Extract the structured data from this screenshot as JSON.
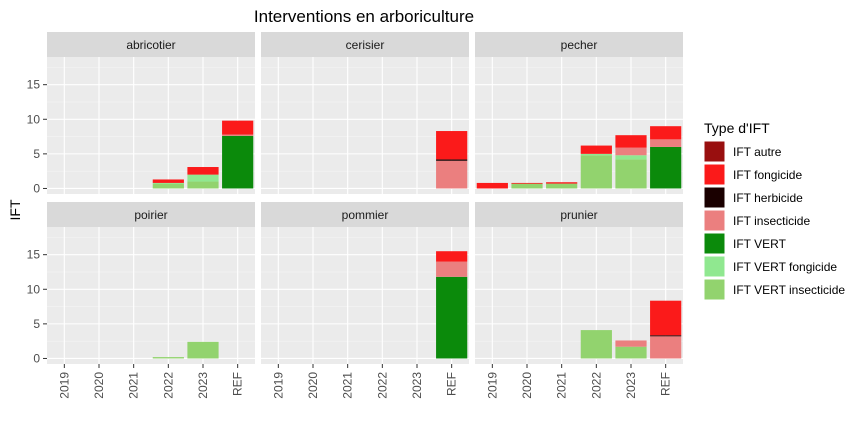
{
  "chart_data": {
    "type": "bar",
    "title": "Interventions en arboriculture",
    "xlabel": "",
    "ylabel": "IFT",
    "ylim": [
      -0.8,
      19
    ],
    "yticks": [
      0,
      5,
      10,
      15
    ],
    "grid": true,
    "legend_position": "right",
    "legend_title": "Type d'IFT",
    "categories": [
      "2019",
      "2020",
      "2021",
      "2022",
      "2023",
      "REF"
    ],
    "series": [
      {
        "name": "IFT autre",
        "color": "#990F0F"
      },
      {
        "name": "IFT fongicide",
        "color": "#FB1A1A"
      },
      {
        "name": "IFT herbicide",
        "color": "#1A0000"
      },
      {
        "name": "IFT insecticide",
        "color": "#EB7F7F"
      },
      {
        "name": "IFT VERT",
        "color": "#0B8A0B"
      },
      {
        "name": "IFT VERT fongicide",
        "color": "#90E890"
      },
      {
        "name": "IFT VERT insecticide",
        "color": "#92D36E"
      }
    ],
    "stack_order": [
      "IFT VERT insecticide",
      "IFT VERT fongicide",
      "IFT VERT",
      "IFT insecticide",
      "IFT herbicide",
      "IFT fongicide",
      "IFT autre"
    ],
    "panels": [
      {
        "name": "abricotier",
        "values": {
          "2019": {},
          "2020": {},
          "2021": {},
          "2022": {
            "IFT VERT insecticide": 0.7,
            "IFT VERT fongicide": 0.1,
            "IFT fongicide": 0.5
          },
          "2023": {
            "IFT VERT insecticide": 1.0,
            "IFT VERT fongicide": 1.0,
            "IFT fongicide": 1.1
          },
          "REF": {
            "IFT VERT": 7.6,
            "IFT insecticide": 0.2,
            "IFT fongicide": 2.0
          }
        }
      },
      {
        "name": "cerisier",
        "values": {
          "2019": {},
          "2020": {},
          "2021": {},
          "2022": {},
          "2023": {},
          "REF": {
            "IFT insecticide": 4.0,
            "IFT herbicide": 0.2,
            "IFT fongicide": 4.1
          }
        }
      },
      {
        "name": "pecher",
        "values": {
          "2019": {
            "IFT fongicide": 0.8
          },
          "2020": {
            "IFT VERT insecticide": 0.7,
            "IFT fongicide": 0.1
          },
          "2021": {
            "IFT VERT insecticide": 0.7,
            "IFT fongicide": 0.2
          },
          "2022": {
            "IFT VERT insecticide": 4.8,
            "IFT VERT fongicide": 0.2,
            "IFT fongicide": 1.2
          },
          "2023": {
            "IFT VERT insecticide": 4.2,
            "IFT VERT fongicide": 0.6,
            "IFT insecticide": 1.1,
            "IFT fongicide": 1.8
          },
          "REF": {
            "IFT VERT": 6.0,
            "IFT insecticide": 1.1,
            "IFT fongicide": 1.9
          }
        }
      },
      {
        "name": "poirier",
        "values": {
          "2019": {},
          "2020": {},
          "2021": {},
          "2022": {
            "IFT VERT insecticide": 0.2
          },
          "2023": {
            "IFT VERT insecticide": 2.4
          },
          "REF": {}
        }
      },
      {
        "name": "pommier",
        "values": {
          "2019": {},
          "2020": {},
          "2021": {},
          "2022": {},
          "2023": {},
          "REF": {
            "IFT VERT": 11.8,
            "IFT insecticide": 2.2,
            "IFT fongicide": 1.5
          }
        }
      },
      {
        "name": "prunier",
        "values": {
          "2019": {},
          "2020": {},
          "2021": {},
          "2022": {
            "IFT VERT insecticide": 4.1
          },
          "2023": {
            "IFT VERT insecticide": 1.7,
            "IFT insecticide": 0.9
          },
          "REF": {
            "IFT insecticide": 3.2,
            "IFT herbicide": 0.15,
            "IFT fongicide": 5.0
          }
        }
      }
    ]
  }
}
